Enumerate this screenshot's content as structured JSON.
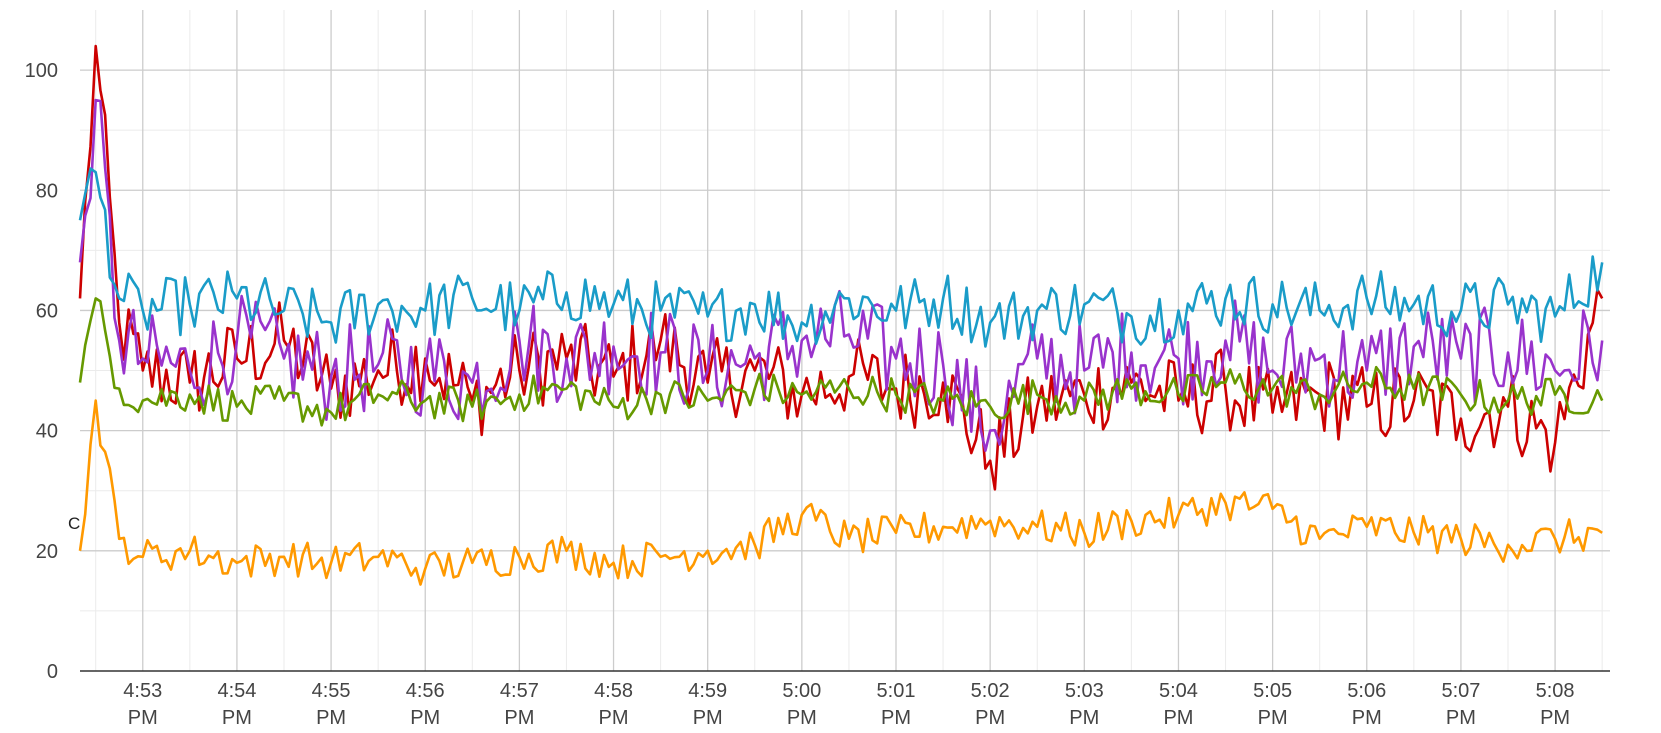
{
  "chart_data": {
    "type": "line",
    "title": "",
    "xlabel": "",
    "ylabel": "",
    "ylim": [
      0,
      110
    ],
    "y_ticks": [
      0,
      20,
      40,
      60,
      80,
      100
    ],
    "x_range": [
      "4:52:20 PM",
      "5:08:35 PM"
    ],
    "x_ticks": [
      "4:53 PM",
      "4:54 PM",
      "4:55 PM",
      "4:56 PM",
      "4:57 PM",
      "4:58 PM",
      "4:59 PM",
      "5:00 PM",
      "5:01 PM",
      "5:02 PM",
      "5:03 PM",
      "5:04 PM",
      "5:05 PM",
      "5:06 PM",
      "5:07 PM",
      "5:08 PM"
    ],
    "grid": true,
    "legend": "none",
    "annotations": [
      {
        "text": "C",
        "x": "4:52:20 PM",
        "y": 25
      }
    ],
    "series": [
      {
        "color": "#cc0000",
        "x": [
          "4:52:20 PM",
          "4:52:30 PM",
          "4:52:45 PM",
          "4:53:00 PM",
          "4:53:30 PM",
          "4:54:00 PM",
          "4:54:30 PM",
          "4:55:00 PM",
          "4:55:30 PM",
          "4:56:00 PM",
          "4:56:30 PM",
          "4:57:00 PM",
          "4:57:30 PM",
          "4:58:00 PM",
          "4:58:30 PM",
          "4:59:00 PM",
          "4:59:30 PM",
          "5:00:00 PM",
          "5:00:30 PM",
          "5:01:00 PM",
          "5:01:30 PM",
          "5:02:00 PM",
          "5:02:30 PM",
          "5:03:00 PM",
          "5:03:30 PM",
          "5:04:00 PM",
          "5:04:30 PM",
          "5:05:00 PM",
          "5:05:30 PM",
          "5:06:00 PM",
          "5:06:30 PM",
          "5:07:00 PM",
          "5:07:30 PM",
          "5:08:00 PM",
          "5:08:30 PM"
        ],
        "y": [
          62,
          104,
          58,
          50,
          48,
          52,
          55,
          47,
          50,
          52,
          45,
          50,
          52,
          49,
          55,
          48,
          50,
          46,
          49,
          47,
          48,
          35,
          44,
          46,
          48,
          45,
          47,
          43,
          46,
          44,
          45,
          42,
          44,
          38,
          62
        ]
      },
      {
        "color": "#9933cc",
        "x": [
          "4:52:20 PM",
          "4:52:30 PM",
          "4:52:45 PM",
          "4:53:00 PM",
          "4:53:30 PM",
          "4:54:00 PM",
          "4:54:30 PM",
          "4:55:00 PM",
          "4:55:30 PM",
          "4:56:00 PM",
          "4:56:30 PM",
          "4:57:00 PM",
          "4:57:30 PM",
          "4:58:00 PM",
          "4:58:30 PM",
          "4:59:00 PM",
          "4:59:30 PM",
          "5:00:00 PM",
          "5:00:30 PM",
          "5:01:00 PM",
          "5:01:30 PM",
          "5:02:00 PM",
          "5:02:30 PM",
          "5:03:00 PM",
          "5:03:30 PM",
          "5:04:00 PM",
          "5:04:30 PM",
          "5:05:00 PM",
          "5:05:30 PM",
          "5:06:00 PM",
          "5:06:30 PM",
          "5:07:00 PM",
          "5:07:30 PM",
          "5:08:00 PM",
          "5:08:30 PM"
        ],
        "y": [
          68,
          95,
          55,
          52,
          50,
          55,
          52,
          49,
          51,
          50,
          48,
          55,
          52,
          54,
          53,
          50,
          52,
          55,
          56,
          52,
          51,
          40,
          52,
          50,
          53,
          52,
          55,
          50,
          52,
          50,
          54,
          52,
          53,
          50,
          55
        ]
      },
      {
        "color": "#1a9cc8",
        "x": [
          "4:52:20 PM",
          "4:52:30 PM",
          "4:52:45 PM",
          "4:53:00 PM",
          "4:53:30 PM",
          "4:54:00 PM",
          "4:54:30 PM",
          "4:55:00 PM",
          "4:55:30 PM",
          "4:56:00 PM",
          "4:56:30 PM",
          "4:57:00 PM",
          "4:57:30 PM",
          "4:58:00 PM",
          "4:58:30 PM",
          "4:59:00 PM",
          "4:59:30 PM",
          "5:00:00 PM",
          "5:00:30 PM",
          "5:01:00 PM",
          "5:01:30 PM",
          "5:02:00 PM",
          "5:02:30 PM",
          "5:03:00 PM",
          "5:03:30 PM",
          "5:04:00 PM",
          "5:04:30 PM",
          "5:05:00 PM",
          "5:05:30 PM",
          "5:06:00 PM",
          "5:06:30 PM",
          "5:07:00 PM",
          "5:07:30 PM",
          "5:08:00 PM",
          "5:08:30 PM"
        ],
        "y": [
          75,
          83,
          62,
          60,
          61,
          62,
          60,
          58,
          61,
          60,
          62,
          60,
          63,
          61,
          60,
          59,
          61,
          58,
          62,
          60,
          62,
          58,
          60,
          61,
          59,
          60,
          62,
          61,
          60,
          62,
          61,
          60,
          61,
          59,
          68
        ]
      },
      {
        "color": "#669900",
        "x": [
          "4:52:20 PM",
          "4:52:30 PM",
          "4:52:45 PM",
          "4:53:00 PM",
          "4:53:30 PM",
          "4:54:00 PM",
          "4:54:30 PM",
          "4:55:00 PM",
          "4:55:30 PM",
          "4:56:00 PM",
          "4:56:30 PM",
          "4:57:00 PM",
          "4:57:30 PM",
          "4:58:00 PM",
          "4:58:30 PM",
          "4:59:00 PM",
          "4:59:30 PM",
          "5:00:00 PM",
          "5:00:30 PM",
          "5:01:00 PM",
          "5:01:30 PM",
          "5:02:00 PM",
          "5:02:30 PM",
          "5:03:00 PM",
          "5:03:30 PM",
          "5:04:00 PM",
          "5:04:30 PM",
          "5:05:00 PM",
          "5:05:30 PM",
          "5:06:00 PM",
          "5:06:30 PM",
          "5:07:00 PM",
          "5:07:30 PM",
          "5:08:00 PM",
          "5:08:30 PM"
        ],
        "y": [
          48,
          62,
          47,
          45,
          46,
          44,
          45,
          43,
          46,
          45,
          44,
          46,
          47,
          44,
          46,
          45,
          47,
          46,
          47,
          46,
          45,
          44,
          46,
          45,
          47,
          46,
          48,
          47,
          46,
          48,
          47,
          46,
          45,
          46,
          45
        ]
      },
      {
        "color": "#ff9900",
        "x": [
          "4:52:20 PM",
          "4:52:30 PM",
          "4:52:45 PM",
          "4:53:00 PM",
          "4:53:30 PM",
          "4:54:00 PM",
          "4:54:30 PM",
          "4:55:00 PM",
          "4:55:30 PM",
          "4:56:00 PM",
          "4:56:30 PM",
          "4:57:00 PM",
          "4:57:30 PM",
          "4:58:00 PM",
          "4:58:30 PM",
          "4:59:00 PM",
          "4:59:30 PM",
          "5:00:00 PM",
          "5:00:30 PM",
          "5:01:00 PM",
          "5:01:30 PM",
          "5:02:00 PM",
          "5:02:30 PM",
          "5:03:00 PM",
          "5:03:30 PM",
          "5:04:00 PM",
          "5:04:30 PM",
          "5:05:00 PM",
          "5:05:30 PM",
          "5:06:00 PM",
          "5:06:30 PM",
          "5:07:00 PM",
          "5:07:30 PM",
          "5:08:00 PM",
          "5:08:30 PM"
        ],
        "y": [
          20,
          45,
          22,
          19,
          20,
          18,
          19,
          18,
          19,
          17,
          18,
          19,
          20,
          18,
          19,
          20,
          21,
          26,
          22,
          23,
          24,
          25,
          24,
          23,
          25,
          26,
          28,
          27,
          22,
          24,
          23,
          22,
          21,
          22,
          23
        ]
      }
    ]
  }
}
